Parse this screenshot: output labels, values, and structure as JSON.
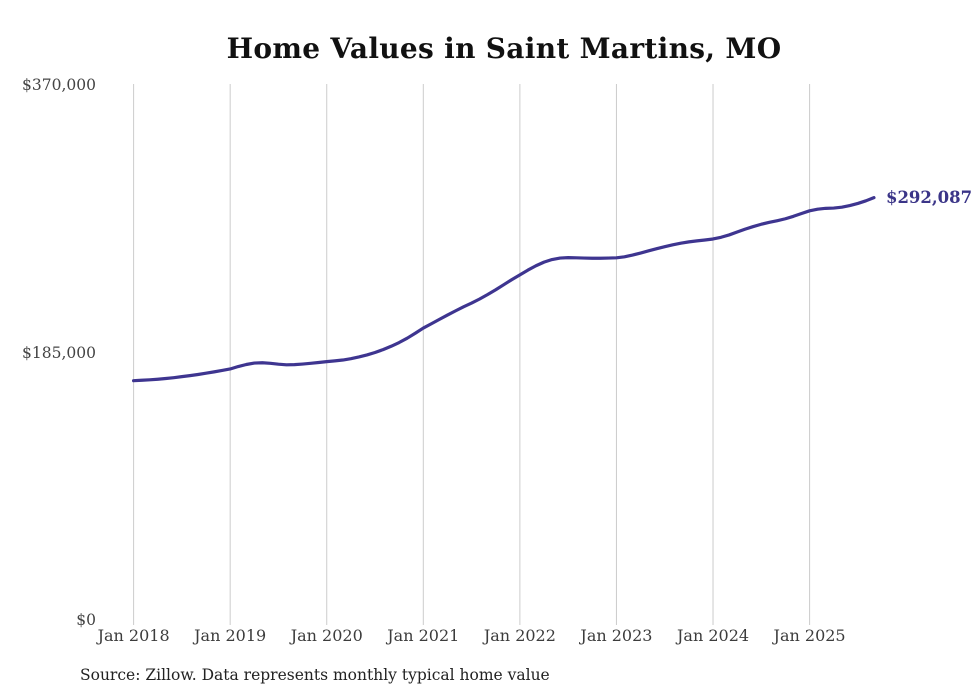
{
  "header": {
    "title": "Home Values in Saint Martins, MO"
  },
  "footer": {
    "source_note": "Source: Zillow. Data represents monthly typical home value"
  },
  "chart_data": {
    "type": "line",
    "title": "Home Values in Saint Martins, MO",
    "xlabel": "",
    "ylabel": "",
    "ylim": [
      0,
      370000
    ],
    "grid": "vertical-only",
    "legend": "none",
    "end_label": "$292,087",
    "latest_value": 292087,
    "colors": {
      "line": "#3e3590",
      "end_label": "#3b3588",
      "gridline": "#cccccc",
      "axis_text": "#444444",
      "title_text": "#111111",
      "background": "#ffffff"
    },
    "x_tick_labels": [
      "Jan 2018",
      "Jan 2019",
      "Jan 2020",
      "Jan 2021",
      "Jan 2022",
      "Jan 2023",
      "Jan 2024",
      "Jan 2025"
    ],
    "y_ticks": [
      {
        "value": 0,
        "label": "$0"
      },
      {
        "value": 185000,
        "label": "$185,000"
      },
      {
        "value": 370000,
        "label": "$370,000"
      }
    ],
    "series": [
      {
        "name": "Typical home value",
        "frequency": "monthly",
        "start_month": "2018-01",
        "end_month": "2025-09",
        "values": [
          165500,
          165800,
          166100,
          166500,
          167000,
          167600,
          168300,
          169000,
          169800,
          170700,
          171600,
          172600,
          173600,
          175300,
          176700,
          177700,
          177900,
          177500,
          176900,
          176500,
          176600,
          177000,
          177500,
          178100,
          178700,
          179200,
          179800,
          180700,
          181900,
          183300,
          185000,
          187000,
          189300,
          191900,
          194900,
          198300,
          201900,
          204900,
          207900,
          210900,
          213800,
          216600,
          219200,
          222000,
          225100,
          228400,
          231900,
          235400,
          238700,
          242000,
          245000,
          247500,
          249300,
          250300,
          250600,
          250500,
          250300,
          250200,
          250200,
          250300,
          250500,
          251200,
          252400,
          253800,
          255300,
          256800,
          258200,
          259500,
          260600,
          261500,
          262200,
          262800,
          263500,
          264700,
          266300,
          268300,
          270300,
          272100,
          273700,
          275000,
          276200,
          277500,
          279200,
          281100,
          283000,
          284100,
          284700,
          284900,
          285500,
          286600,
          288100,
          289900,
          292087
        ]
      }
    ],
    "source": "Source: Zillow. Data represents monthly typical home value"
  }
}
